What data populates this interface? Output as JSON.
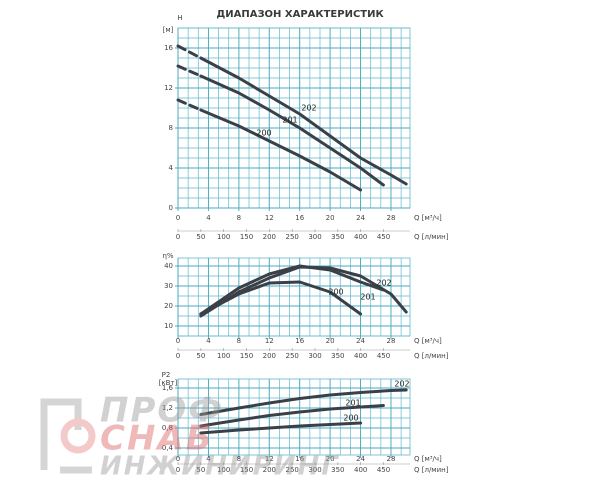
{
  "title": "ДИАПАЗОН ХАРАКТЕРИСТИК",
  "watermark": {
    "lines": [
      "ПРОФ",
      "СНАБ",
      "ИНЖИНИРИНГ"
    ]
  },
  "chart_data": [
    {
      "type": "line",
      "ylabel": "H",
      "yunit": "[м]",
      "xlabel": "Q [м³/ч]",
      "x2label": "Q [л/мин]",
      "xlim": [
        0,
        30.5
      ],
      "xticks": [
        0,
        4,
        8,
        12,
        16,
        20,
        24,
        28
      ],
      "x2lim": [
        0,
        508
      ],
      "x2ticks": [
        0,
        50,
        100,
        150,
        200,
        250,
        300,
        350,
        400,
        450
      ],
      "ylim": [
        0,
        18
      ],
      "yticks": [
        0,
        4,
        8,
        12,
        16
      ],
      "grid": true,
      "dashed_start": true,
      "series": [
        {
          "name": "202",
          "color": "#3b4048",
          "x": [
            0,
            3,
            8,
            12,
            16,
            20,
            24,
            28,
            30
          ],
          "values": [
            16.2,
            15,
            13,
            11.2,
            9.4,
            7.2,
            5,
            3.3,
            2.4
          ]
        },
        {
          "name": "201",
          "color": "#3b4048",
          "x": [
            0,
            3,
            8,
            12,
            16,
            20,
            24,
            27
          ],
          "values": [
            14.2,
            13.2,
            11.5,
            9.8,
            8,
            6,
            4,
            2.3
          ]
        },
        {
          "name": "200",
          "color": "#3b4048",
          "x": [
            0,
            3,
            8,
            12,
            16,
            20,
            24
          ],
          "values": [
            10.8,
            9.8,
            8.2,
            6.7,
            5.2,
            3.6,
            1.8
          ]
        }
      ]
    },
    {
      "type": "line",
      "ylabel": "η%",
      "xlabel": "Q [м³/ч]",
      "x2label": "Q [л/мин]",
      "xlim": [
        0,
        30.5
      ],
      "xticks": [
        0,
        4,
        8,
        12,
        16,
        20,
        24,
        28
      ],
      "x2lim": [
        0,
        508
      ],
      "x2ticks": [
        0,
        50,
        100,
        150,
        200,
        250,
        300,
        350,
        400,
        450
      ],
      "ylim": [
        5,
        44
      ],
      "yticks": [
        10,
        20,
        30,
        40
      ],
      "grid": true,
      "series": [
        {
          "name": "202",
          "color": "#3b4048",
          "x": [
            3,
            8,
            12,
            16,
            20,
            24,
            28,
            30
          ],
          "values": [
            15,
            27,
            34,
            39.5,
            39,
            35,
            26,
            17
          ]
        },
        {
          "name": "201",
          "color": "#3b4048",
          "x": [
            3,
            8,
            12,
            16,
            20,
            24,
            27
          ],
          "values": [
            16,
            29,
            36,
            40,
            38,
            32,
            28
          ]
        },
        {
          "name": "200",
          "color": "#3b4048",
          "x": [
            3,
            8,
            12,
            16,
            20,
            24
          ],
          "values": [
            16,
            26,
            31.5,
            32,
            27,
            16
          ]
        }
      ]
    },
    {
      "type": "line",
      "ylabel": "P2",
      "yunit": "[кВт]",
      "xlabel": "Q [м³/ч]",
      "x2label": "Q [л/мин]",
      "xlim": [
        0,
        30.5
      ],
      "xticks": [
        0,
        4,
        8,
        12,
        16,
        20,
        24,
        28
      ],
      "x2lim": [
        0,
        508
      ],
      "x2ticks": [
        0,
        50,
        100,
        150,
        200,
        250,
        300,
        350,
        400,
        450
      ],
      "ylim": [
        0.26,
        1.78
      ],
      "yticks": [
        {
          "value": 0.4,
          "label": "0,4"
        },
        {
          "value": 0.8,
          "label": "0,8"
        },
        {
          "value": 1.2,
          "label": "1,2"
        },
        {
          "value": 1.6,
          "label": "1,6"
        }
      ],
      "grid": true,
      "series": [
        {
          "name": "202",
          "color": "#3b4048",
          "x": [
            3,
            8,
            12,
            16,
            20,
            24,
            28,
            30
          ],
          "values": [
            1.07,
            1.2,
            1.3,
            1.39,
            1.46,
            1.51,
            1.55,
            1.56
          ]
        },
        {
          "name": "201",
          "color": "#3b4048",
          "x": [
            3,
            8,
            12,
            16,
            20,
            24,
            27
          ],
          "values": [
            0.84,
            0.96,
            1.05,
            1.12,
            1.18,
            1.22,
            1.25
          ]
        },
        {
          "name": "200",
          "color": "#3b4048",
          "x": [
            3,
            8,
            12,
            16,
            20,
            24
          ],
          "values": [
            0.7,
            0.76,
            0.8,
            0.84,
            0.87,
            0.9
          ]
        }
      ]
    }
  ]
}
